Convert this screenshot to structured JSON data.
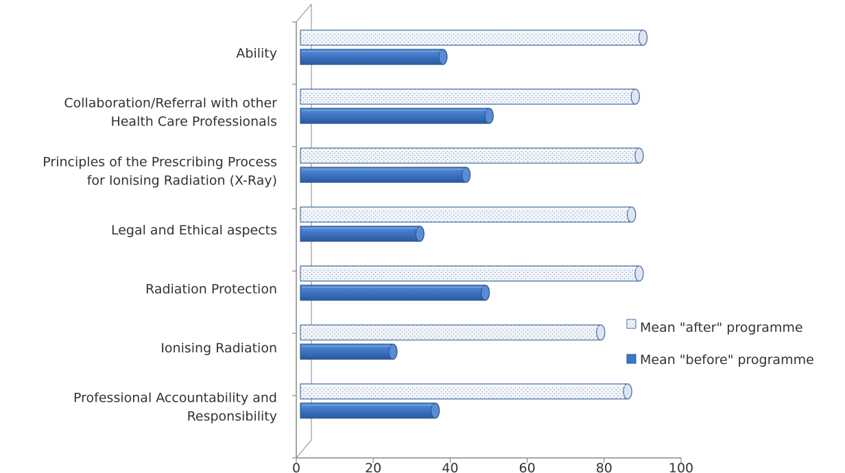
{
  "chart_data": {
    "type": "bar",
    "orientation": "horizontal",
    "style": "3d-cylinder",
    "title": "",
    "xlabel": "",
    "ylabel": "",
    "categories": [
      [
        "Ability"
      ],
      [
        "Collaboration/Referral with other",
        "Health Care Professionals"
      ],
      [
        "Principles of the Prescribing Process",
        "for Ionising Radiation (X-Ray)"
      ],
      [
        "Legal and Ethical aspects"
      ],
      [
        "Radiation Protection"
      ],
      [
        "Ionising Radiation"
      ],
      [
        "Professional Accountability and",
        "Responsibility"
      ]
    ],
    "series": [
      {
        "name": "Mean \"after\" programme",
        "pattern": "dotted",
        "color": "#eef2f8",
        "edge": "#4a6fa5",
        "values": [
          91,
          89,
          90,
          88,
          90,
          80,
          87
        ]
      },
      {
        "name": "Mean \"before\" programme",
        "pattern": "solid",
        "color": "#3e76c3",
        "edge": "#2a5596",
        "values": [
          39,
          51,
          45,
          33,
          50,
          26,
          37
        ]
      }
    ],
    "xlim": [
      0,
      100
    ],
    "xticks": [
      0,
      20,
      40,
      60,
      80,
      100
    ],
    "grid": false,
    "legend_position": "right"
  }
}
